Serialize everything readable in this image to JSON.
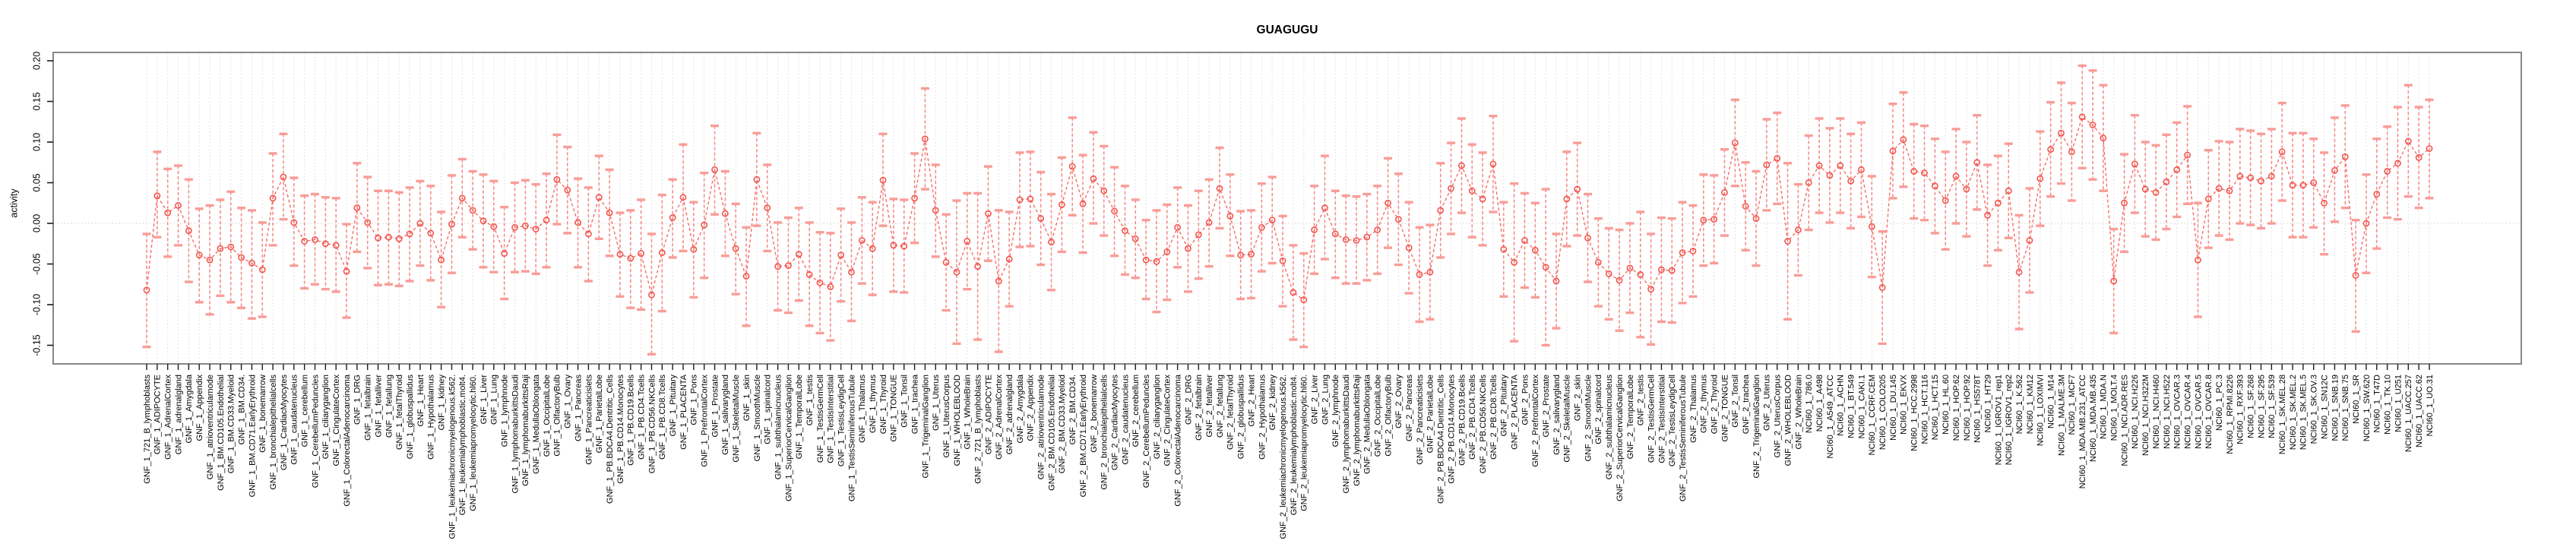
{
  "title": "GUAGUGU",
  "chart_data": {
    "type": "line",
    "subtype": "points-with-error-bars",
    "title": "GUAGUGU",
    "xlabel": "",
    "ylabel": "activity",
    "ylim": [
      -0.173,
      0.21
    ],
    "yticks": [
      -0.15,
      -0.1,
      -0.05,
      0.0,
      0.05,
      0.1,
      0.15,
      0.2
    ],
    "grid": "dotted vertical gridline per category, dotted horizontal line at 0",
    "legend_position": "none",
    "categories": [
      "GNF_1_721_B_lymphoblasts",
      "GNF_1_ADIPOCYTE",
      "GNF_1_AdrenalCortex",
      "GNF_1_adrenalgland",
      "GNF_1_Amygdala",
      "GNF_1_Appendix",
      "GNF_1_atrioventricularnode",
      "GNF_1_BM.CD105.Endothelial",
      "GNF_1_BM.CD33.Myeloid",
      "GNF_1_BM.CD34.",
      "GNF_1_BM.CD71.EarlyErythroid",
      "GNF_1_bonemarrow",
      "GNF_1_bronchialepithelialcells",
      "GNF_1_CardiacMyocytes",
      "GNF_1_caudatenucleus",
      "GNF_1_cerebellum",
      "GNF_1_CerebellumPeduncles",
      "GNF_1_ciliaryganglion",
      "GNF_1_CingulateCortex",
      "GNF_1_ColorectalAdenocarcinoma",
      "GNF_1_DRG",
      "GNF_1_fetalbrain",
      "GNF_1_fetalliver",
      "GNF_1_fetallung",
      "GNF_1_fetalThyroid",
      "GNF_1_globuspallidus",
      "GNF_1_Heart",
      "GNF_1_Hypothalamus",
      "GNF_1_kidney",
      "GNF_1_leukemiachronicmyelogenous.k562.",
      "GNF_1_leukemialymphoblastic.molt4.",
      "GNF_1_leukemiapromyelocytic.hl60.",
      "GNF_1_Liver",
      "GNF_1_Lung",
      "GNF_1_lymphnode",
      "GNF_1_lymphomaburkittsDaudi",
      "GNF_1_lymphomaburkittsRaji",
      "GNF_1_MedullaOblongata",
      "GNF_1_OccipitalLobe",
      "GNF_1_OlfactoryBulb",
      "GNF_1_Ovary",
      "GNF_1_Pancreas",
      "GNF_1_Pancreaticislets",
      "GNF_1_ParietalLobe",
      "GNF_1_PB.BDCA4.Dentritic_Cells",
      "GNF_1_PB.CD14.Monocytes",
      "GNF_1_PB.CD19.Bcells",
      "GNF_1_PB.CD4.Tcells",
      "GNF_1_PB.CD56.NKCells",
      "GNF_1_PB.CD8.Tcells",
      "GNF_1_Pituitary",
      "GNF_1_PLACENTA",
      "GNF_1_Pons",
      "GNF_1_PrefrontalCortex",
      "GNF_1_Prostate",
      "GNF_1_salivarygland",
      "GNF_1_SkeletalMuscle",
      "GNF_1_skin",
      "GNF_1_SmoothMuscle",
      "GNF_1_spinalcord",
      "GNF_1_subthalamicnucleus",
      "GNF_1_SuperiorCervicalGanglion",
      "GNF_1_TemporalLobe",
      "GNF_1_testis",
      "GNF_1_TestisGermCell",
      "GNF_1_TestisInterstitial",
      "GNF_1_TestisLeydigCell",
      "GNF_1_TestisSeminiferousTubule",
      "GNF_1_Thalamus",
      "GNF_1_thymus",
      "GNF_1_Thyroid",
      "GNF_1_TONGUE",
      "GNF_1_Tonsil",
      "GNF_1_trachea",
      "GNF_1_TrigeminalGanglion",
      "GNF_1_Uterus",
      "GNF_1_UterusCorpus",
      "GNF_1_WHOLEBLOOD",
      "GNF_1_WholeBrain",
      "GNF_2_721_B_lymphoblasts",
      "GNF_2_ADIPOCYTE",
      "GNF_2_AdrenalCortex",
      "GNF_2_adrenalgland",
      "GNF_2_Amygdala",
      "GNF_2_Appendix",
      "GNF_2_atrioventricularnode",
      "GNF_2_BM.CD105.Endothelial",
      "GNF_2_BM.CD33.Myeloid",
      "GNF_2_BM.CD34.",
      "GNF_2_BM.CD71.EarlyErythroid",
      "GNF_2_bonemarrow",
      "GNF_2_bronchialepithelialcells",
      "GNF_2_CardiacMyocytes",
      "GNF_2_caudatenucleus",
      "GNF_2_cerebellum",
      "GNF_2_CerebellumPeduncles",
      "GNF_2_ciliaryganglion",
      "GNF_2_CingulateCortex",
      "GNF_2_ColorectalAdenocarcinoma",
      "GNF_2_DRG",
      "GNF_2_fetalbrain",
      "GNF_2_fetalliver",
      "GNF_2_fetallung",
      "GNF_2_fetalThyroid",
      "GNF_2_globuspallidus",
      "GNF_2_Heart",
      "GNF_2_Hypothalamus",
      "GNF_2_kidney",
      "GNF_2_leukemiachronicmyelogenous.k562.",
      "GNF_2_leukemialymphoblastic.molt4.",
      "GNF_2_leukemiapromyelocytic.hl60.",
      "GNF_2_Liver",
      "GNF_2_Lung",
      "GNF_2_lymphnode",
      "GNF_2_lymphomaburkittsDaudi",
      "GNF_2_lymphomaburkittsRaji",
      "GNF_2_MedullaOblongata",
      "GNF_2_OccipitalLobe",
      "GNF_2_OlfactoryBulb",
      "GNF_2_Ovary",
      "GNF_2_Pancreas",
      "GNF_2_Pancreaticislets",
      "GNF_2_ParietalLobe",
      "GNF_2_PB.BDCA4.Dentritic_Cells",
      "GNF_2_PB.CD14.Monocytes",
      "GNF_2_PB.CD19.Bcells",
      "GNF_2_PB.CD4.Tcells",
      "GNF_2_PB.CD56.NKCells",
      "GNF_2_PB.CD8.Tcells",
      "GNF_2_Pituitary",
      "GNF_2_PLACENTA",
      "GNF_2_Pons",
      "GNF_2_PrefrontalCortex",
      "GNF_2_Prostate",
      "GNF_2_salivarygland",
      "GNF_2_SkeletalMuscle",
      "GNF_2_skin",
      "GNF_2_SmoothMuscle",
      "GNF_2_spinalcord",
      "GNF_2_subthalamicnucleus",
      "GNF_2_SuperiorCervicalGanglion",
      "GNF_2_TemporalLobe",
      "GNF_2_testis",
      "GNF_2_TestisGermCell",
      "GNF_2_TestisInterstitial",
      "GNF_2_TestisLeydigCell",
      "GNF_2_TestisSeminiferousTubule",
      "GNF_2_Thalamus",
      "GNF_2_thymus",
      "GNF_2_Thyroid",
      "GNF_2_TONGUE",
      "GNF_2_Tonsil",
      "GNF_2_trachea",
      "GNF_2_TrigeminalGanglion",
      "GNF_2_Uterus",
      "GNF_2_UterusCorpus",
      "GNF_2_WHOLEBLOOD",
      "GNF_2_WholeBrain",
      "NCI60_1_786.0",
      "NCI60_1_A498",
      "NCI60_1_A549_ATCC",
      "NCI60_1_ACHN",
      "NCI60_1_BT.549",
      "NCI60_1_CAKI.1",
      "NCI60_1_CCRF.CEM",
      "NCI60_1_COLO205",
      "NCI60_1_DU.145",
      "NCI60_1_EKVX",
      "NCI60_1_HCC.2998",
      "NCI60_1_HCT.116",
      "NCI60_1_HCT.15",
      "NCI60_1_HL.60",
      "NCI60_1_HOP.62",
      "NCI60_1_HOP.92",
      "NCI60_1_HS578T",
      "NCI60_1_HT29",
      "NCI60_1_IGROV1_rep1",
      "NCI60_1_IGROV1_rep2",
      "NCI60_1_K.562",
      "NCI60_1_KM12",
      "NCI60_1_LOXIMVI",
      "NCI60_1_M14",
      "NCI60_1_MALME.3M",
      "NCI60_1_MCF7",
      "NCI60_1_MDA.MB.231_ATCC",
      "NCI60_1_MDA.MB.435",
      "NCI60_1_MDA.N",
      "NCI60_1_MOLT.4",
      "NCI60_1_NCI.ADR.RES",
      "NCI60_1_NCI.H226",
      "NCI60_1_NCI.H322M",
      "NCI60_1_NCI.H460",
      "NCI60_1_NCI.H522",
      "NCI60_1_OVCAR.3",
      "NCI60_1_OVCAR.4",
      "NCI60_1_OVCAR.5",
      "NCI60_1_OVCAR.8",
      "NCI60_1_PC.3",
      "NCI60_1_RPMI.8226",
      "NCI60_1_RXF.393",
      "NCI60_1_SF.268",
      "NCI60_1_SF.295",
      "NCI60_1_SF.539",
      "NCI60_1_SK.MEL.28",
      "NCI60_1_SK.MEL.2",
      "NCI60_1_SK.MEL.5",
      "NCI60_1_SK.OV.3",
      "NCI60_1_SN12C",
      "NCI60_1_SNB.19",
      "NCI60_1_SNB.75",
      "NCI60_1_SR",
      "NCI60_1_SW.620",
      "NCI60_1_T47D",
      "NCI60_1_TK.10",
      "NCI60_1_U251",
      "NCI60_1_UACC.257",
      "NCI60_1_UACC.62",
      "NCI60_1_UO.31"
    ],
    "series": [
      {
        "name": "activity",
        "values": [
          -0.082,
          0.034,
          0.013,
          0.022,
          -0.009,
          -0.039,
          -0.045,
          -0.031,
          -0.029,
          -0.042,
          -0.049,
          -0.057,
          0.031,
          0.057,
          0.001,
          -0.022,
          -0.02,
          -0.025,
          -0.027,
          -0.059,
          0.019,
          0.001,
          -0.018,
          -0.017,
          -0.019,
          -0.013,
          0.0,
          -0.012,
          -0.045,
          -0.001,
          0.031,
          0.016,
          0.003,
          -0.004,
          -0.037,
          -0.005,
          -0.003,
          -0.007,
          0.004,
          0.054,
          0.041,
          0.001,
          -0.013,
          0.032,
          0.013,
          -0.038,
          -0.043,
          -0.037,
          -0.088,
          -0.036,
          0.007,
          0.032,
          -0.032,
          -0.002,
          0.066,
          0.012,
          -0.031,
          -0.065,
          0.054,
          0.019,
          -0.053,
          -0.052,
          -0.038,
          -0.063,
          -0.073,
          -0.078,
          -0.039,
          -0.06,
          -0.021,
          -0.031,
          0.053,
          -0.027,
          -0.028,
          0.031,
          0.104,
          0.016,
          -0.048,
          -0.06,
          -0.022,
          -0.053,
          0.012,
          -0.071,
          -0.044,
          0.029,
          0.03,
          0.006,
          -0.023,
          0.023,
          0.07,
          0.024,
          0.055,
          0.04,
          0.015,
          -0.009,
          -0.019,
          -0.045,
          -0.047,
          -0.035,
          -0.005,
          -0.031,
          -0.014,
          0.001,
          0.043,
          0.009,
          -0.039,
          -0.038,
          -0.005,
          0.004,
          -0.046,
          -0.085,
          -0.094,
          -0.008,
          0.019,
          -0.013,
          -0.02,
          -0.021,
          -0.017,
          -0.008,
          0.025,
          0.005,
          -0.03,
          -0.063,
          -0.06,
          0.016,
          0.043,
          0.071,
          0.04,
          0.03,
          0.073,
          -0.032,
          -0.048,
          -0.021,
          -0.033,
          -0.054,
          -0.071,
          0.03,
          0.042,
          -0.018,
          -0.048,
          -0.062,
          -0.07,
          -0.055,
          -0.063,
          -0.081,
          -0.057,
          -0.058,
          -0.036,
          -0.034,
          0.004,
          0.005,
          0.038,
          0.099,
          0.021,
          0.006,
          0.072,
          0.08,
          -0.022,
          -0.008,
          0.05,
          0.071,
          0.059,
          0.071,
          0.052,
          0.066,
          -0.004,
          -0.079,
          0.089,
          0.103,
          0.064,
          0.062,
          0.046,
          0.028,
          0.058,
          0.042,
          0.075,
          0.01,
          0.025,
          0.04,
          -0.06,
          -0.021,
          0.055,
          0.091,
          0.111,
          0.088,
          0.131,
          0.121,
          0.105,
          -0.071,
          0.025,
          0.073,
          0.042,
          0.038,
          0.051,
          0.066,
          0.084,
          -0.045,
          0.03,
          0.043,
          0.04,
          0.058,
          0.056,
          0.052,
          0.058,
          0.088,
          0.047,
          0.047,
          0.05,
          0.025,
          0.065,
          0.082,
          -0.064,
          0.0,
          0.036,
          0.064,
          0.074,
          0.101,
          0.081,
          0.092
        ],
        "lo": [
          -0.152,
          -0.017,
          -0.041,
          -0.027,
          -0.072,
          -0.097,
          -0.112,
          -0.089,
          -0.097,
          -0.104,
          -0.117,
          -0.115,
          -0.027,
          0.005,
          -0.052,
          -0.08,
          -0.075,
          -0.081,
          -0.084,
          -0.116,
          -0.035,
          -0.055,
          -0.076,
          -0.075,
          -0.077,
          -0.071,
          -0.052,
          -0.07,
          -0.103,
          -0.061,
          -0.017,
          -0.032,
          -0.054,
          -0.06,
          -0.093,
          -0.06,
          -0.059,
          -0.062,
          -0.054,
          -0.001,
          -0.012,
          -0.054,
          -0.071,
          -0.019,
          -0.04,
          -0.09,
          -0.104,
          -0.106,
          -0.161,
          -0.108,
          -0.042,
          -0.034,
          -0.091,
          -0.067,
          0.011,
          -0.04,
          -0.087,
          -0.126,
          -0.003,
          -0.034,
          -0.107,
          -0.11,
          -0.095,
          -0.126,
          -0.135,
          -0.144,
          -0.096,
          -0.12,
          -0.074,
          -0.088,
          -0.003,
          -0.084,
          -0.085,
          -0.024,
          0.042,
          -0.041,
          -0.107,
          -0.148,
          -0.081,
          -0.143,
          -0.046,
          -0.158,
          -0.102,
          -0.029,
          -0.028,
          -0.051,
          -0.082,
          -0.035,
          0.01,
          -0.036,
          0.0,
          -0.015,
          -0.04,
          -0.063,
          -0.067,
          -0.093,
          -0.109,
          -0.094,
          -0.054,
          -0.084,
          -0.068,
          -0.053,
          -0.006,
          -0.04,
          -0.093,
          -0.092,
          -0.059,
          -0.049,
          -0.102,
          -0.143,
          -0.152,
          -0.062,
          -0.044,
          -0.067,
          -0.074,
          -0.074,
          -0.07,
          -0.062,
          -0.03,
          -0.051,
          -0.086,
          -0.121,
          -0.118,
          -0.042,
          -0.013,
          0.013,
          -0.017,
          -0.027,
          0.014,
          -0.09,
          -0.145,
          -0.079,
          -0.091,
          -0.15,
          -0.129,
          -0.028,
          -0.015,
          -0.072,
          -0.102,
          -0.118,
          -0.132,
          -0.11,
          -0.14,
          -0.149,
          -0.121,
          -0.122,
          -0.098,
          -0.09,
          -0.052,
          -0.049,
          -0.015,
          0.046,
          -0.033,
          -0.052,
          0.016,
          0.024,
          -0.118,
          -0.064,
          -0.008,
          0.013,
          0.001,
          0.013,
          -0.006,
          0.008,
          -0.066,
          -0.148,
          0.031,
          0.045,
          0.006,
          0.004,
          -0.012,
          -0.032,
          0.0,
          -0.016,
          0.017,
          -0.052,
          -0.033,
          -0.018,
          -0.13,
          -0.085,
          -0.003,
          0.033,
          0.049,
          0.028,
          0.068,
          0.054,
          0.04,
          -0.135,
          -0.035,
          0.013,
          -0.016,
          -0.02,
          -0.007,
          0.008,
          0.024,
          -0.115,
          -0.03,
          -0.015,
          -0.02,
          0.0,
          -0.002,
          -0.006,
          0.0,
          0.028,
          -0.017,
          -0.017,
          -0.005,
          -0.038,
          0.002,
          0.019,
          -0.133,
          -0.061,
          -0.031,
          0.007,
          0.005,
          0.033,
          0.019,
          0.031
        ],
        "hi": [
          -0.013,
          0.088,
          0.067,
          0.071,
          0.054,
          0.018,
          0.022,
          0.029,
          0.039,
          0.019,
          0.016,
          0.001,
          0.086,
          0.11,
          0.056,
          0.034,
          0.036,
          0.032,
          0.031,
          -0.001,
          0.074,
          0.057,
          0.04,
          0.04,
          0.038,
          0.044,
          0.052,
          0.046,
          0.014,
          0.059,
          0.079,
          0.064,
          0.06,
          0.052,
          0.02,
          0.05,
          0.053,
          0.048,
          0.061,
          0.109,
          0.094,
          0.055,
          0.044,
          0.083,
          0.066,
          0.013,
          0.016,
          0.029,
          -0.013,
          0.035,
          0.054,
          0.097,
          0.026,
          0.062,
          0.12,
          0.064,
          0.024,
          -0.005,
          0.111,
          0.072,
          0.001,
          0.007,
          0.019,
          0.001,
          -0.011,
          -0.012,
          0.018,
          0.001,
          0.032,
          0.026,
          0.11,
          0.03,
          0.029,
          0.086,
          0.166,
          0.072,
          0.011,
          0.028,
          0.037,
          0.037,
          0.07,
          0.016,
          0.014,
          0.087,
          0.088,
          0.063,
          0.036,
          0.081,
          0.13,
          0.084,
          0.112,
          0.095,
          0.069,
          0.046,
          0.029,
          0.004,
          0.016,
          0.023,
          0.044,
          0.022,
          0.04,
          0.054,
          0.093,
          0.06,
          0.015,
          0.016,
          0.049,
          0.057,
          0.009,
          -0.027,
          -0.037,
          0.046,
          0.083,
          0.04,
          0.034,
          0.033,
          0.036,
          0.046,
          0.08,
          0.061,
          0.026,
          -0.005,
          -0.002,
          0.074,
          0.099,
          0.129,
          0.097,
          0.087,
          0.132,
          0.026,
          0.049,
          0.037,
          0.025,
          0.042,
          -0.013,
          0.088,
          0.099,
          0.036,
          0.006,
          -0.006,
          -0.008,
          0.0,
          0.014,
          -0.013,
          0.007,
          0.006,
          0.026,
          0.022,
          0.06,
          0.059,
          0.091,
          0.152,
          0.075,
          0.064,
          0.128,
          0.136,
          0.074,
          0.048,
          0.108,
          0.129,
          0.117,
          0.129,
          0.11,
          0.124,
          0.058,
          -0.01,
          0.147,
          0.161,
          0.122,
          0.12,
          0.104,
          0.088,
          0.116,
          0.1,
          0.133,
          0.072,
          0.083,
          0.098,
          0.01,
          0.043,
          0.113,
          0.149,
          0.173,
          0.148,
          0.194,
          0.188,
          0.17,
          -0.007,
          0.085,
          0.133,
          0.1,
          0.096,
          0.109,
          0.124,
          0.144,
          0.025,
          0.09,
          0.101,
          0.1,
          0.116,
          0.114,
          0.11,
          0.116,
          0.148,
          0.111,
          0.111,
          0.104,
          0.087,
          0.13,
          0.145,
          0.004,
          0.06,
          0.104,
          0.119,
          0.143,
          0.17,
          0.143,
          0.152
        ]
      }
    ]
  },
  "colors": {
    "point_stroke": "#f2564f",
    "connector_line": "#f2564f",
    "whisker_stem": "#f6736e",
    "whisker_cap": "#f99893",
    "gridline": "#d9d9d9",
    "box_border": "#878787",
    "tick": "#1a1a1a",
    "text": "#000000",
    "background": "#ffffff"
  }
}
